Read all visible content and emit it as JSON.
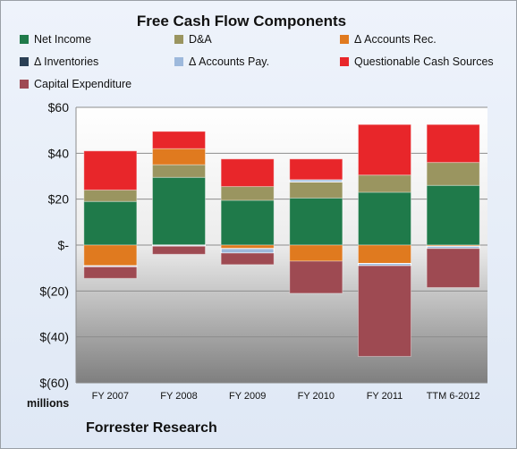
{
  "chart_data": {
    "type": "bar",
    "stacked": true,
    "title": "Free Cash Flow Components",
    "unit_label": "millions",
    "footer": "Forrester Research",
    "categories": [
      "FY 2007",
      "FY 2008",
      "FY 2009",
      "FY 2010",
      "FY 2011",
      "TTM 6-2012"
    ],
    "ylim": [
      -60,
      60
    ],
    "yticks": [
      {
        "value": 60,
        "label": "$60"
      },
      {
        "value": 40,
        "label": "$40"
      },
      {
        "value": 20,
        "label": "$20"
      },
      {
        "value": 0,
        "label": "$-"
      },
      {
        "value": -20,
        "label": "$(20)"
      },
      {
        "value": -40,
        "label": "$(40)"
      },
      {
        "value": -60,
        "label": "$(60)"
      }
    ],
    "grid": true,
    "legend": "top",
    "series": [
      {
        "name": "Net Income",
        "color": "#1f7a4a",
        "values": [
          19,
          29.5,
          19.5,
          20.5,
          23,
          26
        ]
      },
      {
        "name": "D&A",
        "color": "#9a9560",
        "values": [
          5,
          5.5,
          6,
          7,
          7.5,
          10
        ]
      },
      {
        "name": "Δ Accounts Rec.",
        "color": "#e07a1f",
        "values": [
          -9,
          7,
          -1.5,
          -7,
          -8,
          -0.5
        ]
      },
      {
        "name": "Δ Inventories",
        "color": "#2a3f55",
        "values": [
          0,
          0,
          0,
          0,
          0,
          0
        ]
      },
      {
        "name": "Δ Accounts Pay.",
        "color": "#9db9dc",
        "values": [
          -0.5,
          -0.5,
          -2,
          1,
          -1,
          -1
        ]
      },
      {
        "name": "Questionable Cash Sources",
        "color": "#e8262a",
        "values": [
          17,
          7.5,
          12,
          9,
          22,
          16.5
        ]
      },
      {
        "name": "Capital Expenditure",
        "color": "#9e4a52",
        "values": [
          -5,
          -3.5,
          -5,
          -14,
          -39.5,
          -17
        ]
      }
    ]
  }
}
